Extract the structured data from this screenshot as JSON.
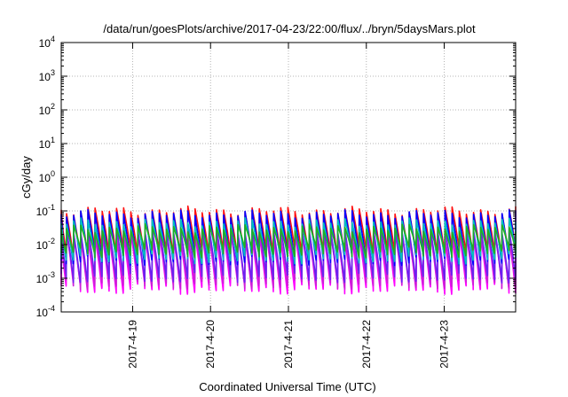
{
  "chart_data": {
    "type": "line",
    "title": "/data/run/goesPlots/archive/2017-04-23/22:00/flux/../bryn/5daysMars.plot",
    "xlabel": "Coordinated Universal Time (UTC)",
    "ylabel": "cGy/day",
    "yscale": "log",
    "ylim": [
      0.0001,
      10000
    ],
    "xlim": [
      "2017-04-18 02:00",
      "2017-04-23 22:00"
    ],
    "x_ticks": [
      "2017-4-19",
      "2017-4-20",
      "2017-4-21",
      "2017-4-22",
      "2017-4-23"
    ],
    "y_ticks": [
      {
        "base": "10",
        "exp": "-4"
      },
      {
        "base": "10",
        "exp": "-3"
      },
      {
        "base": "10",
        "exp": "-2"
      },
      {
        "base": "10",
        "exp": "-1"
      },
      {
        "base": "10",
        "exp": "0"
      },
      {
        "base": "10",
        "exp": "1"
      },
      {
        "base": "10",
        "exp": "2"
      },
      {
        "base": "10",
        "exp": "3"
      },
      {
        "base": "10",
        "exp": "4"
      }
    ],
    "grid": true,
    "legend": "none",
    "cycle_hours": 2.2,
    "series": [
      {
        "color": "#ff00ff",
        "peak": 0.018,
        "trough": 0.0005
      },
      {
        "color": "#cc1fd6",
        "peak": 0.02,
        "trough": 0.0007
      },
      {
        "color": "#6a22f0",
        "peak": 0.03,
        "trough": 0.0011
      },
      {
        "color": "#ff1010",
        "peak": 0.1,
        "trough": 0.006
      },
      {
        "color": "#0000ff",
        "peak": 0.08,
        "trough": 0.0035
      },
      {
        "color": "#00c0c0",
        "peak": 0.045,
        "trough": 0.004
      },
      {
        "color": "#20b020",
        "peak": 0.03,
        "trough": 0.006
      }
    ]
  }
}
